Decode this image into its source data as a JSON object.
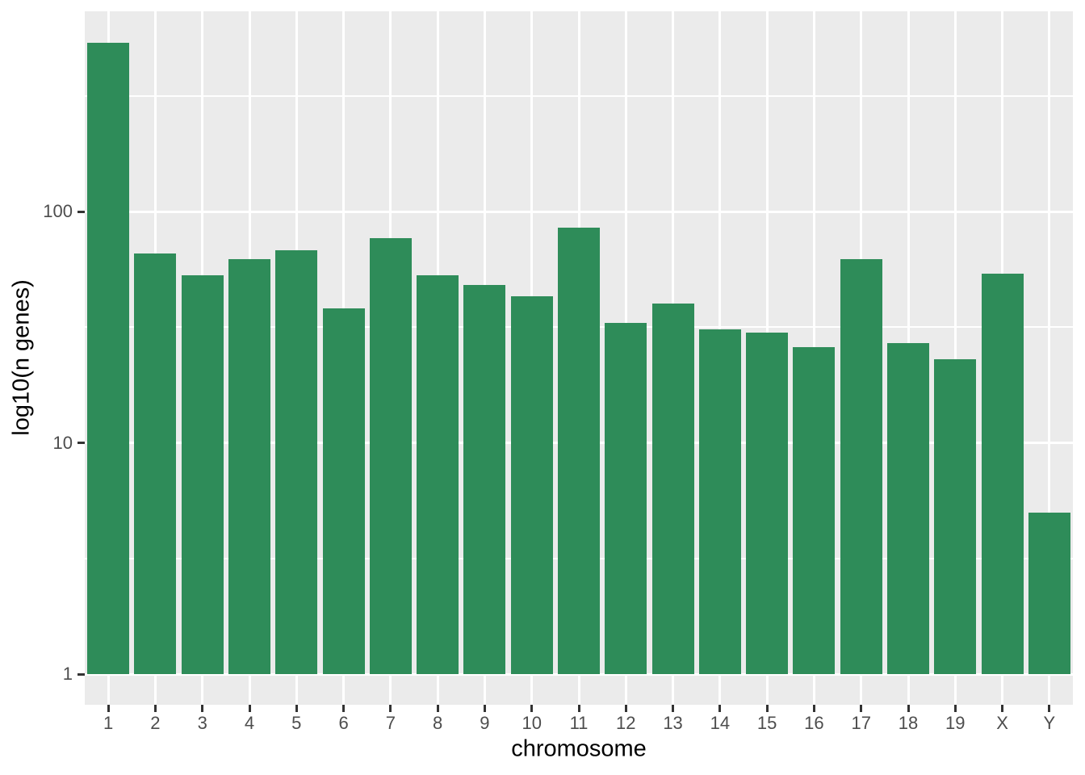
{
  "colors": {
    "figure_background": "#FFFFFF",
    "panel_background": "#EBEBEB",
    "grid": "#FFFFFF",
    "bar_fill": "#2E8C59",
    "axis_text": "#4D4D4D",
    "tick_mark": "#333333",
    "axis_title": "#000000"
  },
  "chart_data": {
    "type": "bar",
    "title": "",
    "xlabel": "chromosome",
    "ylabel": "log10(n genes)",
    "categories": [
      "1",
      "2",
      "3",
      "4",
      "5",
      "6",
      "7",
      "8",
      "9",
      "10",
      "11",
      "12",
      "13",
      "14",
      "15",
      "16",
      "17",
      "18",
      "19",
      "X",
      "Y"
    ],
    "values": [
      535,
      66,
      53,
      62,
      68,
      38,
      77,
      53,
      48,
      43,
      85,
      33,
      40,
      31,
      30,
      26,
      62,
      27,
      23,
      54,
      5
    ],
    "y_scale": "log10",
    "y_ticks": [
      1,
      10,
      100
    ],
    "y_tick_labels": [
      "1",
      "10",
      "100"
    ],
    "y_minor_ticks": [
      3.1623,
      31.623,
      316.23
    ],
    "ylim": [
      0.74,
      740
    ],
    "grid": true,
    "legend_position": "none"
  }
}
